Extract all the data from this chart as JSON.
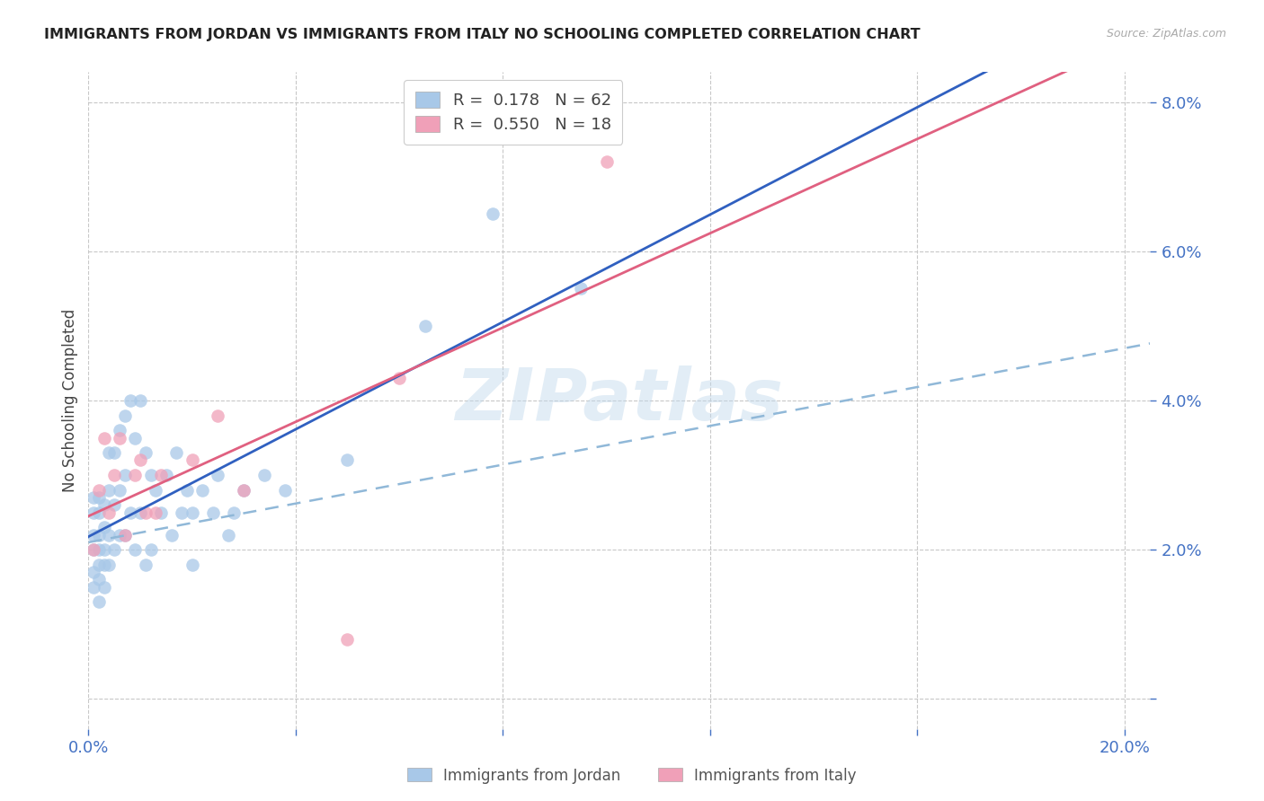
{
  "title": "IMMIGRANTS FROM JORDAN VS IMMIGRANTS FROM ITALY NO SCHOOLING COMPLETED CORRELATION CHART",
  "source": "Source: ZipAtlas.com",
  "ylabel": "No Schooling Completed",
  "xlim": [
    0.0,
    0.205
  ],
  "ylim": [
    -0.004,
    0.084
  ],
  "jordan_color": "#a8c8e8",
  "italy_color": "#f0a0b8",
  "jordan_line_color": "#3060c0",
  "italy_line_color": "#e06080",
  "dash_line_color": "#90b8d8",
  "jordan_R": 0.178,
  "jordan_N": 62,
  "italy_R": 0.55,
  "italy_N": 18,
  "watermark": "ZIPatlas",
  "background_color": "#ffffff",
  "grid_color": "#c8c8c8",
  "tick_color": "#4472c4",
  "jordan_x": [
    0.001,
    0.001,
    0.001,
    0.001,
    0.001,
    0.001,
    0.002,
    0.002,
    0.002,
    0.002,
    0.002,
    0.002,
    0.002,
    0.003,
    0.003,
    0.003,
    0.003,
    0.003,
    0.004,
    0.004,
    0.004,
    0.004,
    0.005,
    0.005,
    0.005,
    0.006,
    0.006,
    0.006,
    0.007,
    0.007,
    0.007,
    0.008,
    0.008,
    0.009,
    0.009,
    0.01,
    0.01,
    0.011,
    0.011,
    0.012,
    0.012,
    0.013,
    0.014,
    0.015,
    0.016,
    0.017,
    0.018,
    0.019,
    0.02,
    0.02,
    0.022,
    0.024,
    0.025,
    0.027,
    0.028,
    0.03,
    0.034,
    0.038,
    0.05,
    0.065,
    0.078,
    0.095
  ],
  "jordan_y": [
    0.027,
    0.025,
    0.022,
    0.02,
    0.017,
    0.015,
    0.027,
    0.025,
    0.022,
    0.02,
    0.018,
    0.016,
    0.013,
    0.026,
    0.023,
    0.02,
    0.018,
    0.015,
    0.033,
    0.028,
    0.022,
    0.018,
    0.033,
    0.026,
    0.02,
    0.036,
    0.028,
    0.022,
    0.038,
    0.03,
    0.022,
    0.04,
    0.025,
    0.035,
    0.02,
    0.04,
    0.025,
    0.033,
    0.018,
    0.03,
    0.02,
    0.028,
    0.025,
    0.03,
    0.022,
    0.033,
    0.025,
    0.028,
    0.025,
    0.018,
    0.028,
    0.025,
    0.03,
    0.022,
    0.025,
    0.028,
    0.03,
    0.028,
    0.032,
    0.05,
    0.065,
    0.055
  ],
  "italy_x": [
    0.001,
    0.002,
    0.003,
    0.004,
    0.005,
    0.006,
    0.007,
    0.009,
    0.01,
    0.011,
    0.013,
    0.014,
    0.02,
    0.025,
    0.03,
    0.05,
    0.06,
    0.1
  ],
  "italy_y": [
    0.02,
    0.028,
    0.035,
    0.025,
    0.03,
    0.035,
    0.022,
    0.03,
    0.032,
    0.025,
    0.025,
    0.03,
    0.032,
    0.038,
    0.028,
    0.008,
    0.043,
    0.072
  ]
}
